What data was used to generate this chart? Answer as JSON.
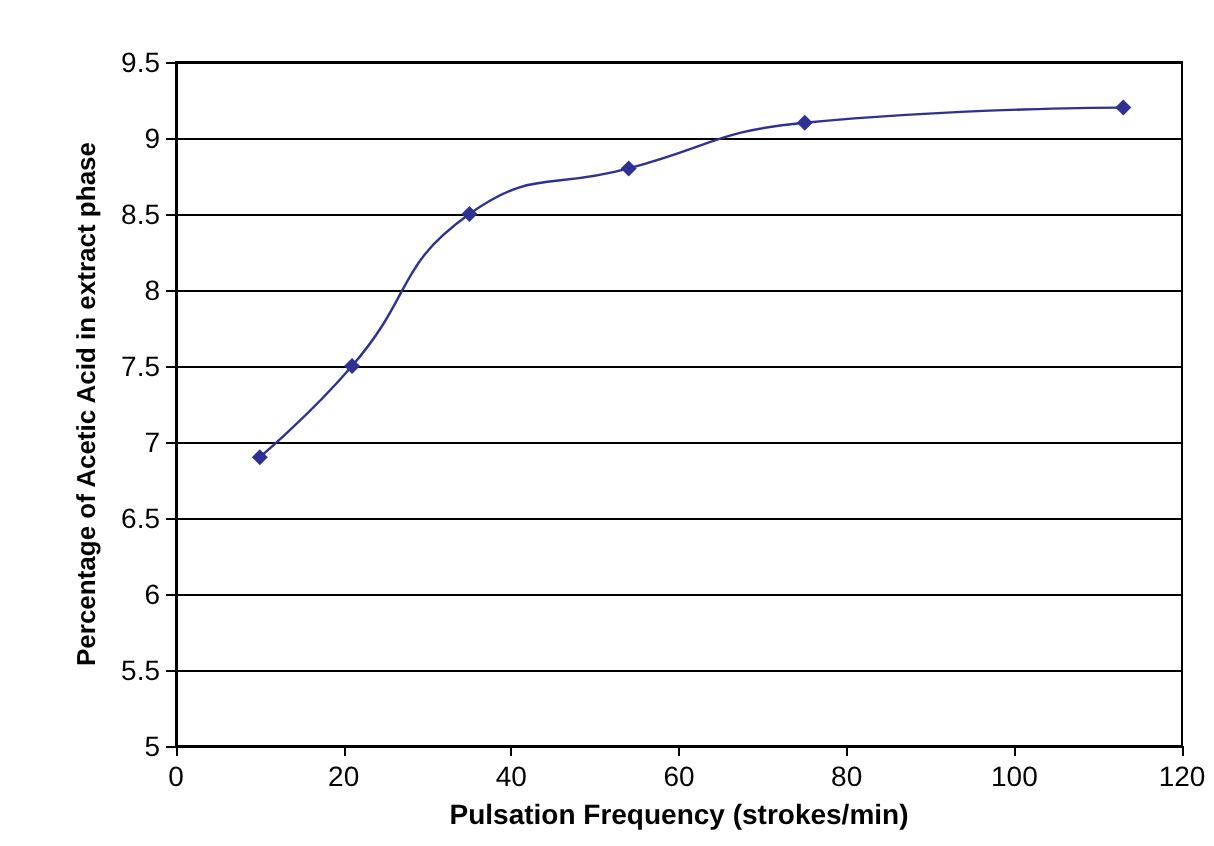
{
  "chart_data": {
    "type": "line",
    "xlabel": "Pulsation Frequency (strokes/min)",
    "ylabel": "Percentage of Acetic Acid in extract phase",
    "x": [
      10,
      21,
      35,
      54,
      75,
      113
    ],
    "series": [
      {
        "color": "#2e3192",
        "values": [
          6.9,
          7.5,
          8.5,
          8.8,
          9.1,
          9.2
        ]
      }
    ],
    "xlim": [
      0,
      120
    ],
    "xticks": [
      0,
      20,
      40,
      60,
      80,
      100,
      120
    ],
    "ylim": [
      5,
      9.5
    ],
    "yticks": [
      5,
      5.5,
      6,
      6.5,
      7,
      7.5,
      8,
      8.5,
      9,
      9.5
    ],
    "grid": "y",
    "marker": "diamond",
    "line_style": "solid"
  }
}
